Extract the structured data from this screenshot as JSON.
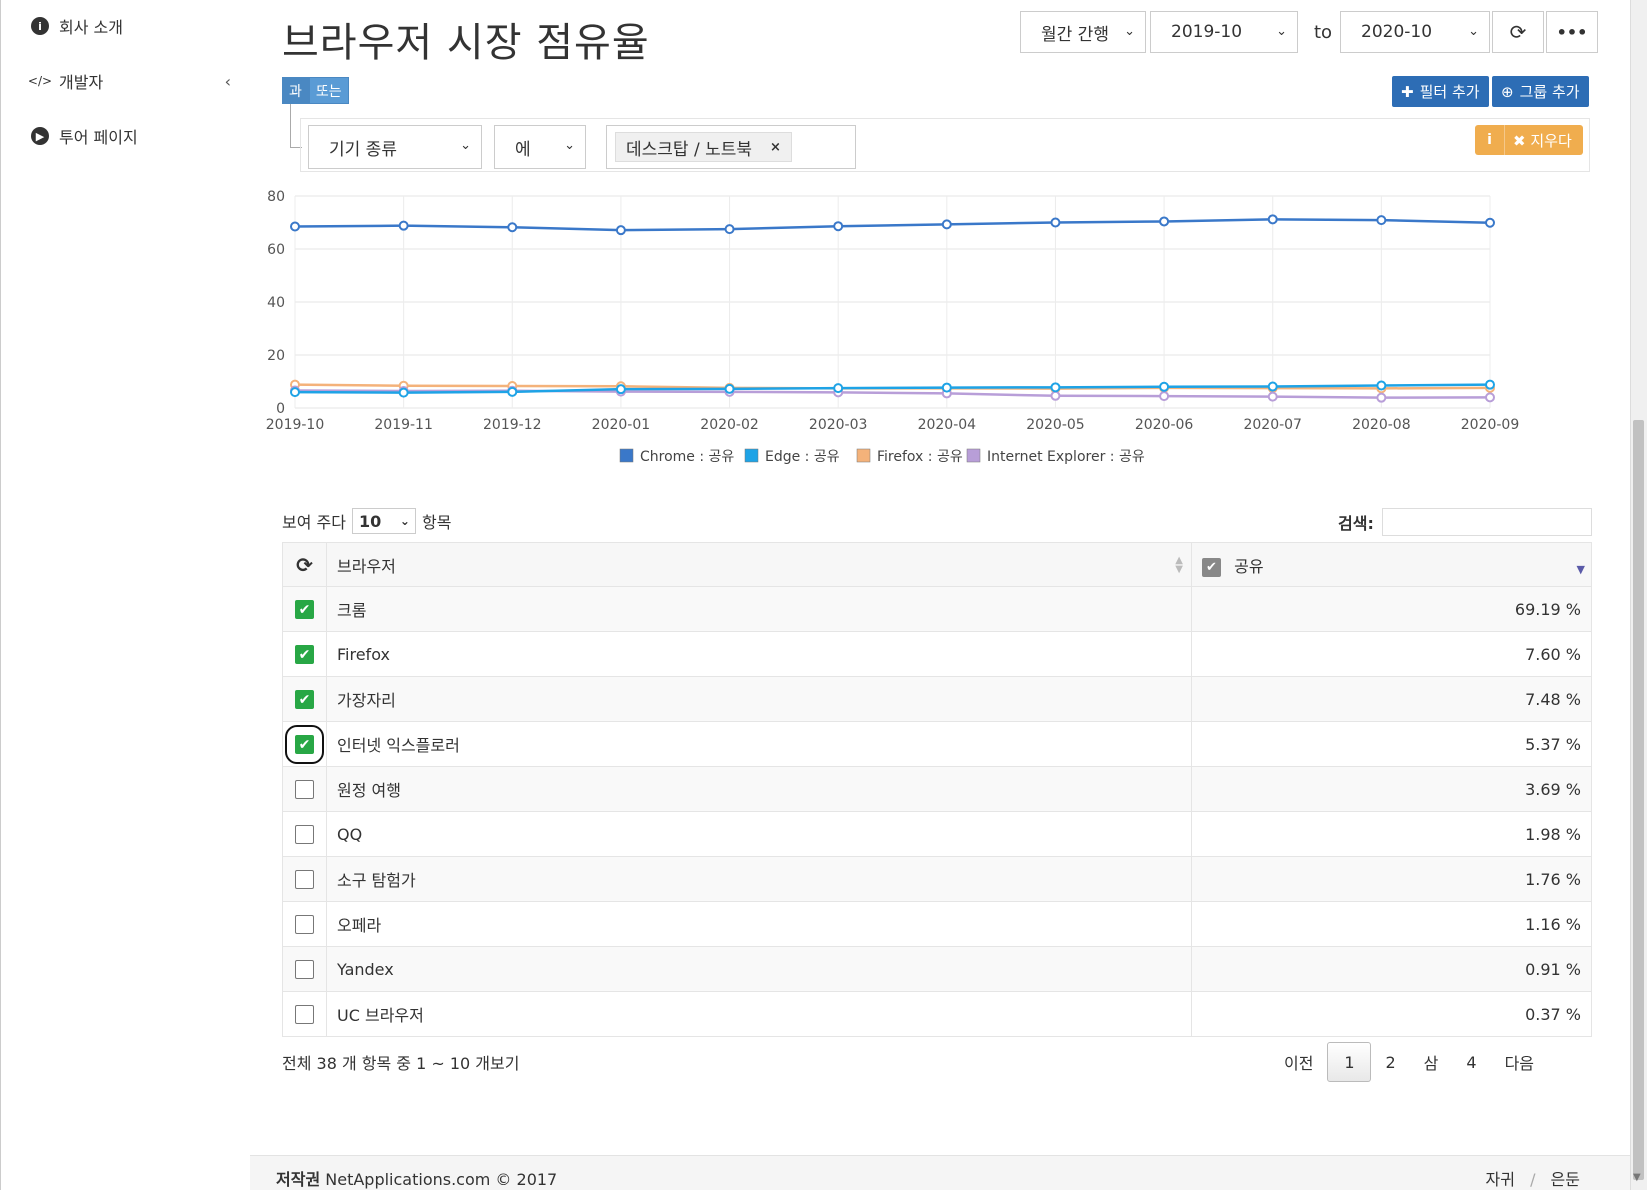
{
  "sidebar": {
    "items": [
      {
        "label": "회사 소개",
        "icon": "info-icon"
      },
      {
        "label": "개발자",
        "icon": "code-icon"
      },
      {
        "label": "투어 페이지",
        "icon": "play-icon"
      }
    ],
    "collapse_glyph": "‹"
  },
  "header": {
    "title": "브라우저 시장 점유율",
    "interval": "월간 간행",
    "date_from": "2019-10",
    "to_label": "to",
    "date_to": "2020-10",
    "refresh_icon": "refresh-icon",
    "more_icon": "more-icon"
  },
  "filters": {
    "and_label": "과",
    "or_label": "또는",
    "add_filter": "필터 추가",
    "add_group": "그룹 추가",
    "field": "기기 종류",
    "operator": "에",
    "tag_value": "데스크탑 / 노트북",
    "tag_remove": "×",
    "clear_label": "지우다"
  },
  "chart_data": {
    "type": "line",
    "x": [
      "2019-10",
      "2019-11",
      "2019-12",
      "2020-01",
      "2020-02",
      "2020-03",
      "2020-04",
      "2020-05",
      "2020-06",
      "2020-07",
      "2020-08",
      "2020-09"
    ],
    "ylim": [
      0,
      80
    ],
    "yticks": [
      "0",
      "20",
      "40",
      "60",
      "80"
    ],
    "grid": true,
    "legend_position": "bottom",
    "series": [
      {
        "name": "Chrome : 공유",
        "color": "#3a78c9",
        "values": [
          68.5,
          68.8,
          68.2,
          67.1,
          67.5,
          68.6,
          69.3,
          70.0,
          70.4,
          71.2,
          70.9,
          69.9
        ]
      },
      {
        "name": "Edge : 공유",
        "color": "#1ea3e6",
        "values": [
          6.0,
          5.8,
          6.1,
          7.1,
          7.2,
          7.5,
          7.7,
          7.8,
          8.0,
          8.1,
          8.5,
          8.8
        ]
      },
      {
        "name": "Firefox : 공유",
        "color": "#f4b27a",
        "values": [
          8.8,
          8.4,
          8.3,
          8.2,
          7.6,
          7.4,
          7.4,
          7.3,
          7.6,
          7.5,
          7.4,
          7.6
        ]
      },
      {
        "name": "Internet Explorer : 공유",
        "color": "#b89ed8",
        "values": [
          6.6,
          6.4,
          6.5,
          6.2,
          6.1,
          5.9,
          5.5,
          4.6,
          4.5,
          4.3,
          3.9,
          4.0
        ]
      }
    ]
  },
  "table_controls": {
    "show_prefix": "보여 주다",
    "page_size": "10",
    "show_suffix": "항목",
    "search_label": "검색:"
  },
  "table": {
    "col_browser": "브라우저",
    "col_share": "공유",
    "rows": [
      {
        "name": "크롬",
        "share": "69.19 %",
        "checked": true
      },
      {
        "name": "Firefox",
        "share": "7.60 %",
        "checked": true
      },
      {
        "name": "가장자리",
        "share": "7.48 %",
        "checked": true
      },
      {
        "name": "인터넷 익스플로러",
        "share": "5.37 %",
        "checked": true
      },
      {
        "name": "원정 여행",
        "share": "3.69 %",
        "checked": false
      },
      {
        "name": "QQ",
        "share": "1.98 %",
        "checked": false
      },
      {
        "name": "소구 탐험가",
        "share": "1.76 %",
        "checked": false
      },
      {
        "name": "오페라",
        "share": "1.16 %",
        "checked": false
      },
      {
        "name": "Yandex",
        "share": "0.91 %",
        "checked": false
      },
      {
        "name": "UC 브라우저",
        "share": "0.37 %",
        "checked": false
      }
    ]
  },
  "pagination": {
    "info": "전체 38 개 항목 중 1 ~ 10 개보기",
    "prev": "이전",
    "pages": [
      "1",
      "2",
      "삼",
      "4"
    ],
    "next": "다음"
  },
  "footer": {
    "copyright_prefix": "저작권",
    "copyright_rest": "NetApplications.com © 2017",
    "link1": "자귀",
    "link_sep": "/",
    "link2": "은둔"
  }
}
